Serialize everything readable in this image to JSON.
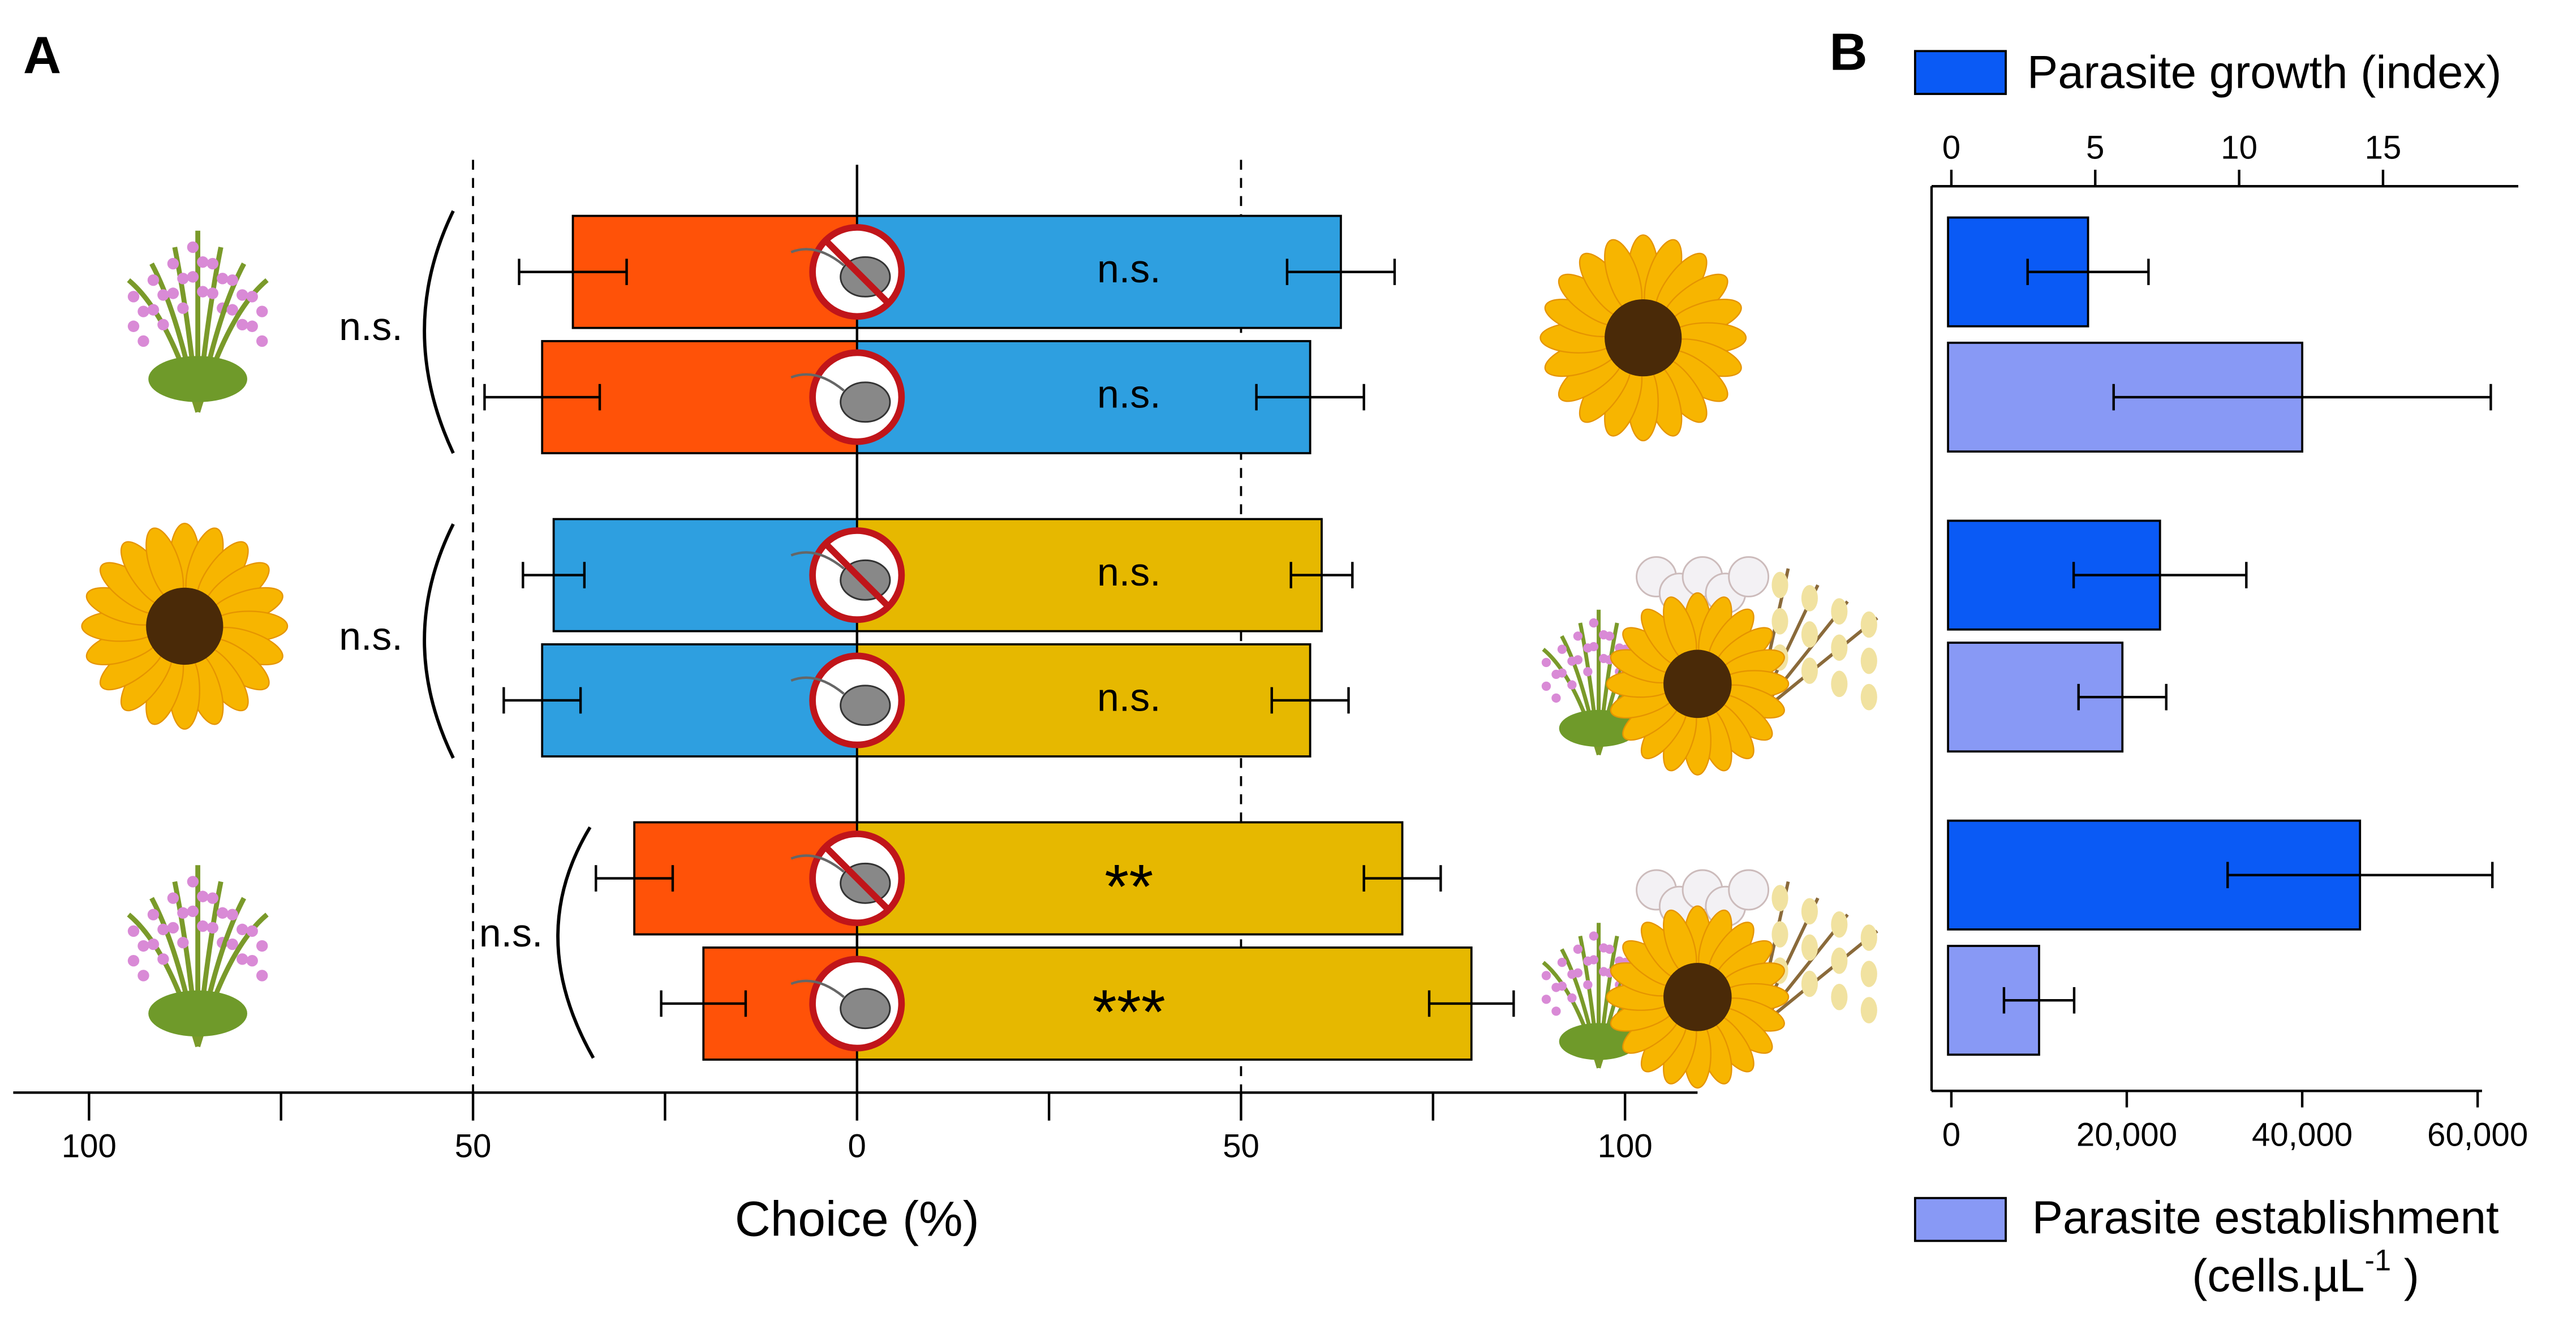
{
  "panel_a": {
    "label": "A",
    "type": "diverging-bar",
    "xlabel": "Choice (%)",
    "xlim": [
      -100,
      100
    ],
    "xticks": [
      {
        "value": -100,
        "label": "100"
      },
      {
        "value": -50,
        "label": "50"
      },
      0,
      50,
      100
    ],
    "minor_xticks": [
      -75,
      -25,
      25,
      75
    ],
    "reference_lines": [
      -50,
      50
    ],
    "bars": [
      {
        "left": 37,
        "left_error": 7,
        "left_color": "#ff5208",
        "right": 63,
        "right_error": 7,
        "right_color": "#2e9fe0",
        "label": "n.s.",
        "icon_crossed": true
      },
      {
        "left": 41,
        "left_error": 7.5,
        "left_color": "#ff5208",
        "right": 59,
        "right_error": 7,
        "right_color": "#2e9fe0",
        "label": "n.s.",
        "icon_crossed": false
      },
      {
        "left": 39.5,
        "left_error": 4,
        "left_color": "#2e9fe0",
        "right": 60.5,
        "right_error": 4,
        "right_color": "#e6b800",
        "label": "n.s.",
        "icon_crossed": true
      },
      {
        "left": 41,
        "left_error": 5,
        "left_color": "#2e9fe0",
        "right": 59,
        "right_error": 5,
        "right_color": "#e6b800",
        "label": "n.s.",
        "icon_crossed": false
      },
      {
        "left": 29,
        "left_error": 5,
        "left_color": "#ff5208",
        "right": 71,
        "right_error": 5,
        "right_color": "#e6b800",
        "label": "**",
        "icon_crossed": true
      },
      {
        "left": 20,
        "left_error": 5.5,
        "left_color": "#ff5208",
        "right": 80,
        "right_error": 5.5,
        "right_color": "#e6b800",
        "label": "***",
        "icon_crossed": false
      }
    ],
    "group_labels": [
      "n.s.",
      "n.s.",
      "n.s."
    ]
  },
  "panel_b": {
    "label": "B",
    "type": "bar",
    "series": [
      {
        "name": "Parasite growth (index)",
        "color": "#0a5af5",
        "values": [
          4.75,
          7.25,
          14.2
        ],
        "errors": [
          2.1,
          3,
          4.6
        ],
        "xlim": [
          0,
          19.7
        ],
        "xticks": [
          0,
          5,
          10,
          15
        ]
      },
      {
        "name": "Parasite establishment",
        "unit": [
          "(cells.µL",
          "-1",
          " )"
        ],
        "color": "#8899f5",
        "values": [
          40000,
          19500,
          10000
        ],
        "errors": [
          21500,
          5000,
          4000
        ],
        "xlim": [
          0,
          60500
        ],
        "xticks": [
          0,
          {
            "value": 20000,
            "label": "20,000"
          },
          {
            "value": 40000,
            "label": "40,000"
          },
          {
            "value": 60000,
            "label": "60,000"
          }
        ]
      }
    ]
  }
}
